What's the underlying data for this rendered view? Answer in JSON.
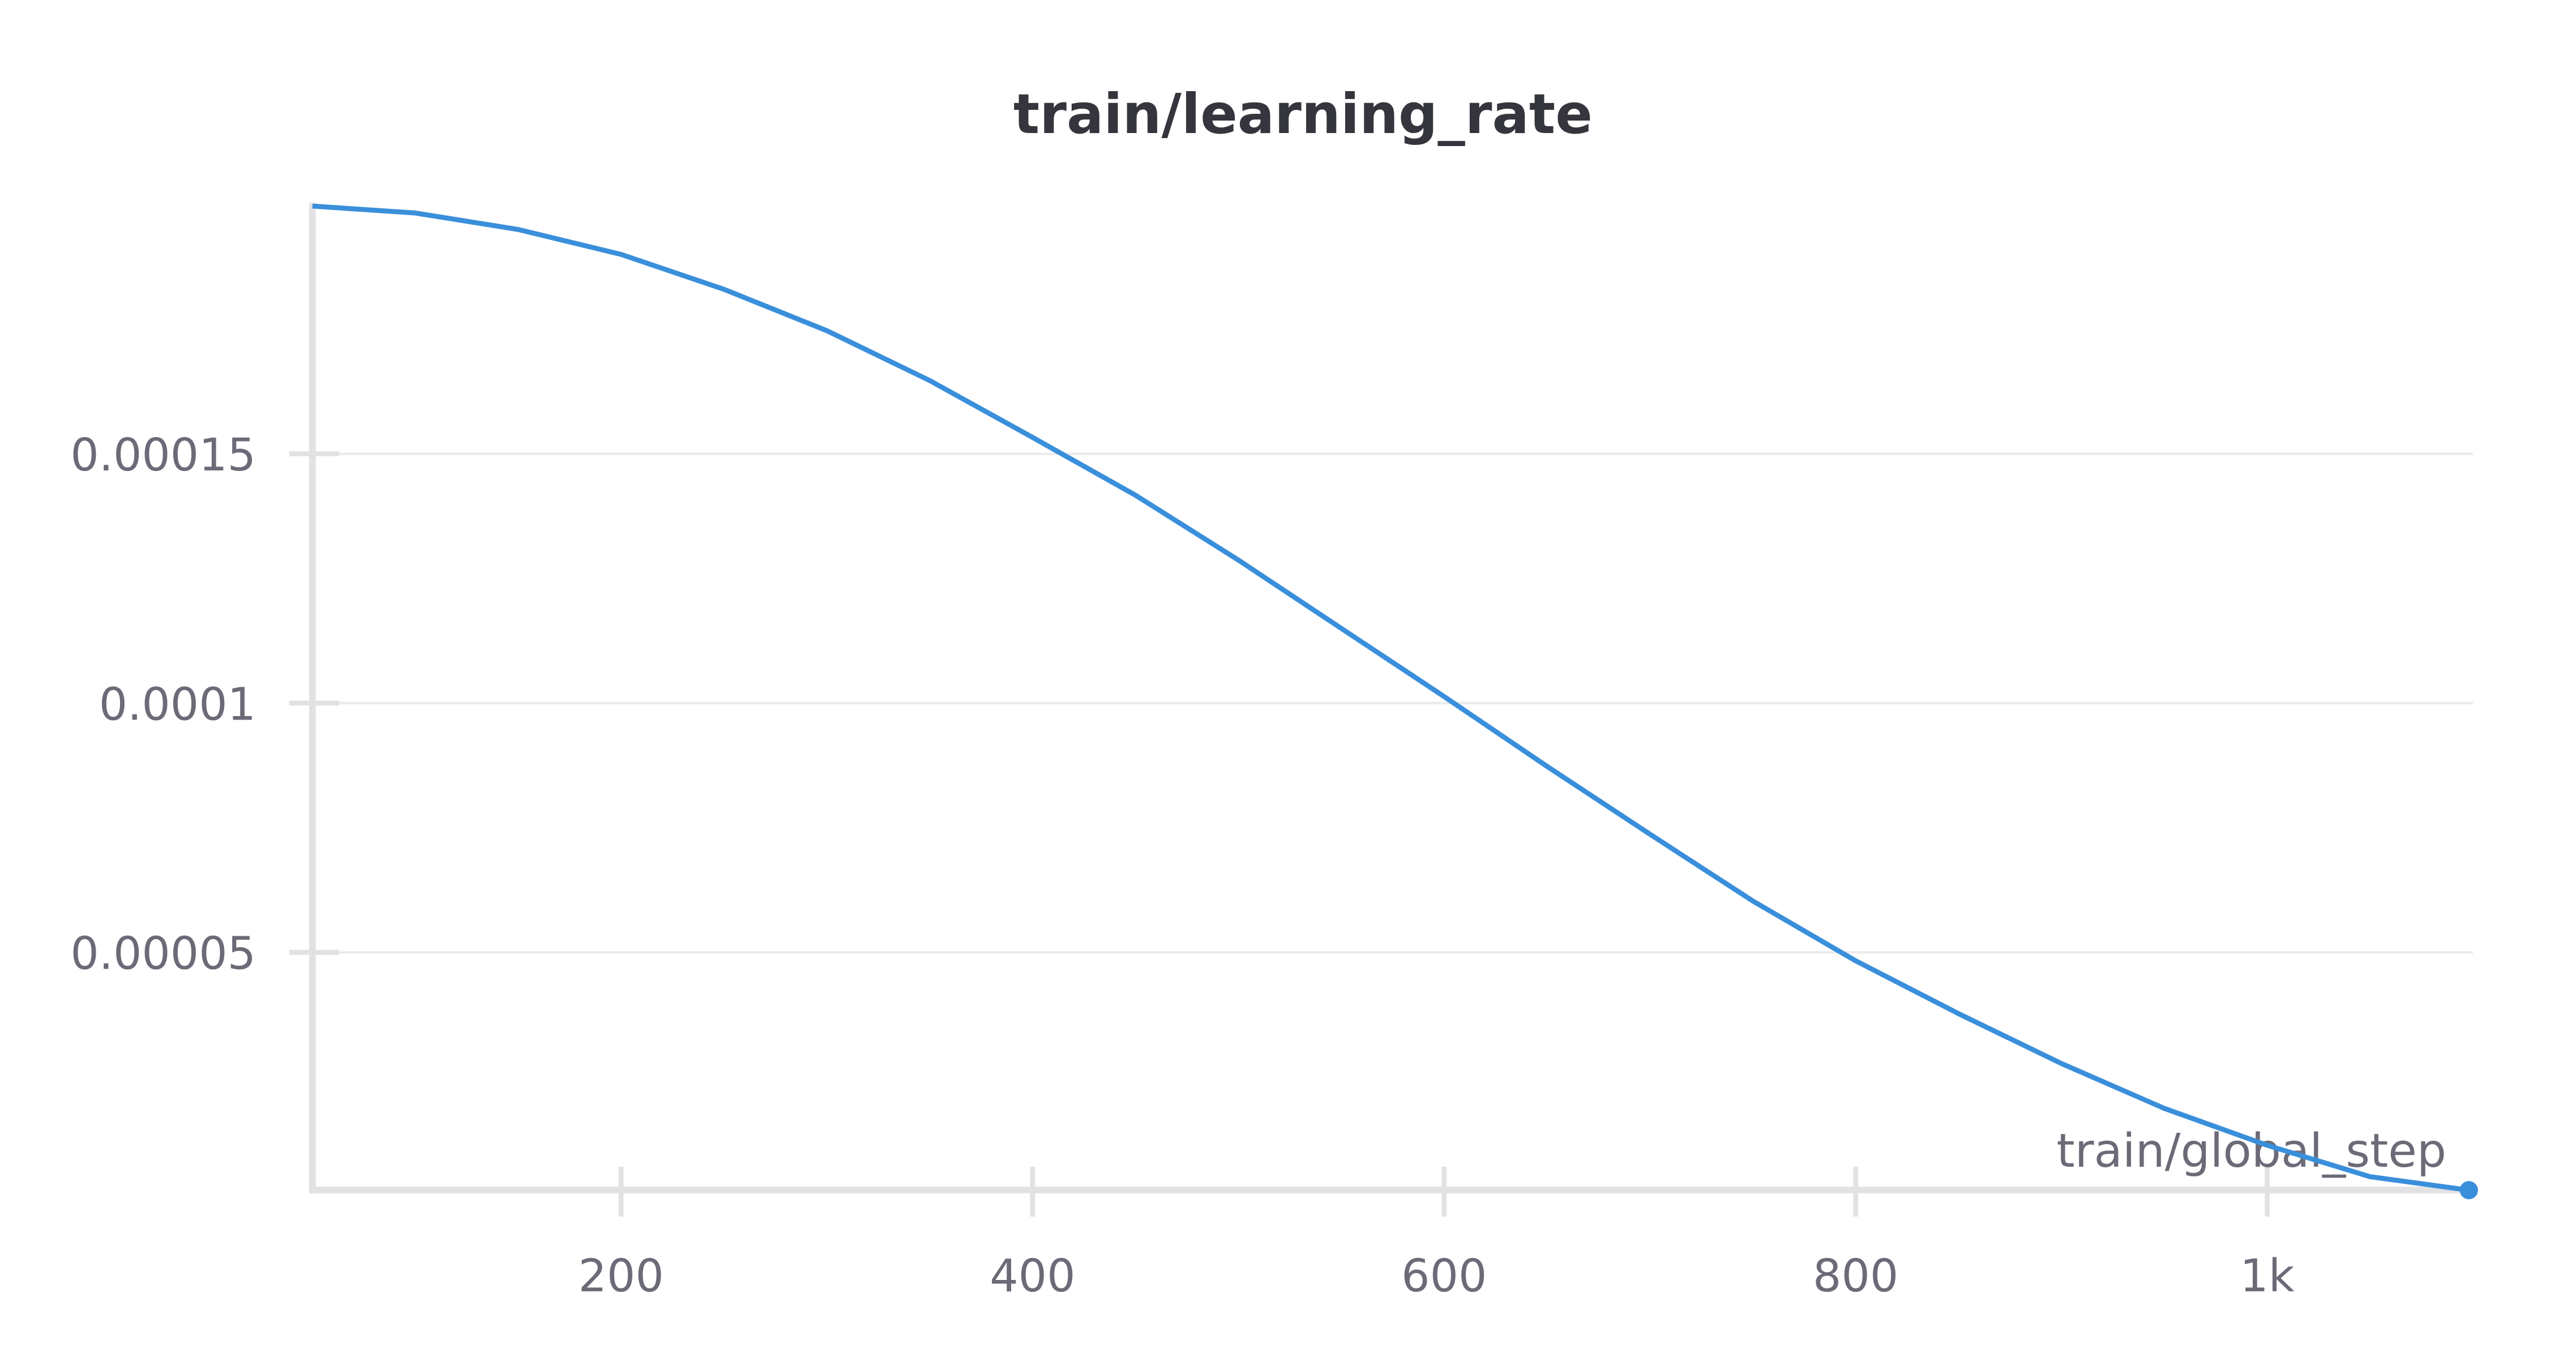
{
  "chart_data": {
    "type": "line",
    "title": "train/learning_rate",
    "xlabel": "train/global_step",
    "ylabel": "",
    "xlim": [
      50,
      1100
    ],
    "ylim": [
      0,
      0.0002
    ],
    "grid": true,
    "color": "#3a8fdb",
    "x_ticks": [
      200,
      400,
      600,
      800,
      1000
    ],
    "x_tick_labels": [
      "200",
      "400",
      "600",
      "800",
      "1k"
    ],
    "y_ticks": [
      5e-05,
      0.0001,
      0.00015
    ],
    "y_tick_labels": [
      "0.00005",
      "0.0001",
      "0.00015"
    ],
    "series": [
      {
        "x": [
          50,
          100,
          150,
          200,
          250,
          300,
          350,
          400,
          450,
          500,
          550,
          600,
          650,
          700,
          750,
          800,
          850,
          900,
          950,
          1000,
          1050,
          1098
        ],
        "y": [
          0.0001997,
          0.0001983,
          0.000195,
          0.00019,
          0.000183,
          0.0001747,
          0.0001647,
          0.0001533,
          0.0001417,
          0.0001287,
          0.000115,
          0.0001013,
          8.73e-05,
          7.37e-05,
          6.03e-05,
          4.83e-05,
          3.77e-05,
          2.77e-05,
          1.87e-05,
          1.13e-05,
          5e-06,
          2.3e-06
        ]
      }
    ]
  }
}
